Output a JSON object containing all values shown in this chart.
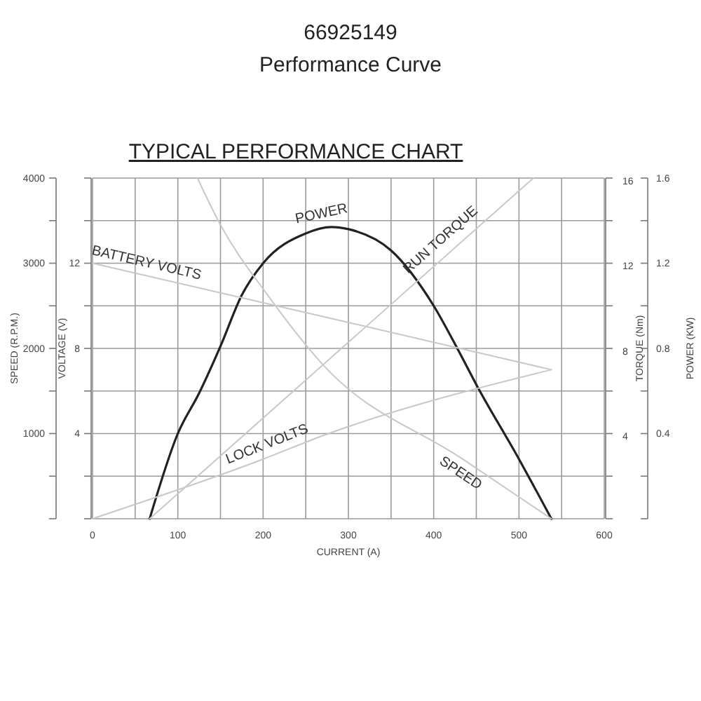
{
  "chart_data": {
    "type": "line",
    "title": "66925149",
    "subtitle": "Performance Curve",
    "annotations": [
      "TYPICAL PERFORMANCE CHART",
      "TORQUE (Nm)",
      "16",
      "12",
      "8",
      "4"
    ],
    "xlabel": "CURRENT (A)",
    "ylabel": "SPEED (R.P.M.)",
    "y2label": "VOLTAGE (V)",
    "y3label": "POWER (KW)",
    "xlim": [
      0,
      600
    ],
    "xticks": [
      0,
      {
        "value": 50,
        "label": null
      },
      100,
      {
        "value": 150,
        "label": null
      },
      200,
      {
        "value": 250,
        "label": null
      },
      300,
      {
        "value": 350,
        "label": null
      },
      400,
      {
        "value": 450,
        "label": null
      },
      500,
      {
        "value": 550,
        "label": null
      },
      600
    ],
    "ylim": [
      0,
      4000
    ],
    "yticks": [
      {
        "value": 0,
        "label": null
      },
      {
        "value": 500,
        "label": null
      },
      1000,
      {
        "value": 1500,
        "label": null
      },
      2000,
      {
        "value": 2500,
        "label": null
      },
      3000,
      {
        "value": 3500,
        "label": null
      },
      4000
    ],
    "y2lim": [
      0,
      16
    ],
    "y2ticks": [
      {
        "value": 0,
        "label": null
      },
      {
        "value": 2,
        "label": null
      },
      4,
      {
        "value": 6,
        "label": null
      },
      8,
      {
        "value": 10,
        "label": null
      },
      12,
      {
        "value": 14,
        "label": null
      },
      {
        "value": 16,
        "label": null
      }
    ],
    "y3lim": [
      0,
      1.6
    ],
    "y3ticks": [
      {
        "value": 0,
        "label": null
      },
      {
        "value": 0.2,
        "label": null
      },
      0.4,
      {
        "value": 0.6,
        "label": null
      },
      0.8,
      {
        "value": 1.0,
        "label": null
      },
      1.2,
      {
        "value": 1.4,
        "label": null
      },
      1.6
    ],
    "grid": true,
    "series": [
      {
        "name": "POWER",
        "axis": "y3",
        "color": "#222222",
        "x": [
          67,
          100,
          125,
          150,
          175,
          200,
          250,
          280,
          300,
          350,
          400,
          429,
          450,
          500,
          538
        ],
        "values": [
          0,
          0.4,
          0.59,
          0.81,
          1.05,
          1.2,
          1.34,
          1.37,
          1.36,
          1.26,
          1.0,
          0.79,
          0.63,
          0.28,
          0
        ]
      },
      {
        "name": "BATTERY VOLTS",
        "axis": "y2",
        "color": "#c8c8c8",
        "x": [
          0,
          270,
          538
        ],
        "values": [
          12,
          9.5,
          7
        ]
      },
      {
        "name": "RUN TORQUE",
        "axis": "y2",
        "color": "#c8c8c8",
        "x": [
          67,
          320,
          517
        ],
        "values": [
          0,
          9,
          16
        ]
      },
      {
        "name": "LOCK VOLTS",
        "axis": "y2",
        "color": "#c8c8c8",
        "x": [
          0,
          200,
          270,
          538
        ],
        "values": [
          0,
          2.8,
          3.9,
          7
        ]
      },
      {
        "name": "SPEED",
        "color": "#c8c8c8",
        "x": [
          123,
          150,
          205,
          270,
          434,
          538
        ],
        "values": [
          4000,
          3450,
          2630,
          1810,
          700,
          0
        ]
      }
    ]
  }
}
